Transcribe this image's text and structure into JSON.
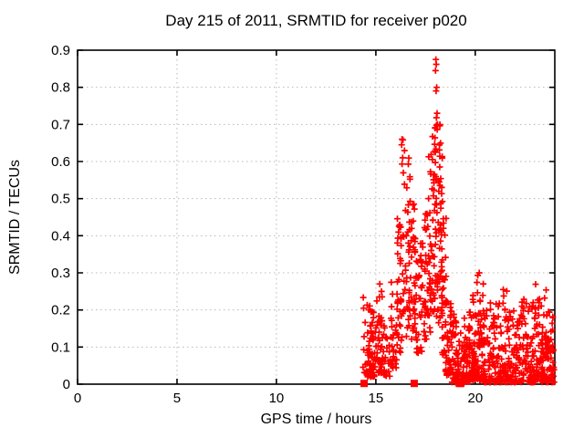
{
  "figure": {
    "background": "#ffffff"
  },
  "chart_data": {
    "type": "scatter",
    "title": "Day 215 of 2011, SRMTID for receiver p020",
    "xlabel": "GPS time / hours",
    "ylabel": "SRMTID / TECUs",
    "xlim": [
      0,
      24
    ],
    "ylim": [
      0,
      0.9
    ],
    "xtick_values": [
      0,
      5,
      10,
      15,
      20
    ],
    "xtick_labels": [
      "0",
      "5",
      "10",
      "15",
      "20"
    ],
    "ytick_values": [
      0,
      0.1,
      0.2,
      0.3,
      0.4,
      0.5,
      0.6,
      0.7,
      0.8,
      0.9
    ],
    "ytick_labels": [
      "0",
      "0.1",
      "0.2",
      "0.3",
      "0.4",
      "0.5",
      "0.6",
      "0.7",
      "0.8",
      "0.9"
    ],
    "grid": true,
    "legend": "none",
    "marker": {
      "shape": "plus",
      "color": "#ff0000",
      "size": 7
    },
    "axis_marker": {
      "shape": "filled-square",
      "color": "#ff0000",
      "size": 8
    },
    "colors": {
      "border": "#000000",
      "grid": "#b8b8b8",
      "text": "#000000",
      "points": "#ff0000"
    },
    "data_time_range_hours": [
      14.35,
      23.97
    ],
    "peak_points": [
      [
        18.02,
        0.875
      ],
      [
        18.04,
        0.862
      ],
      [
        18.0,
        0.845
      ],
      [
        18.06,
        0.8
      ],
      [
        18.03,
        0.79
      ],
      [
        18.08,
        0.73
      ],
      [
        18.05,
        0.718
      ],
      [
        18.1,
        0.7
      ],
      [
        17.98,
        0.69
      ],
      [
        16.32,
        0.66
      ],
      [
        16.3,
        0.645
      ],
      [
        16.35,
        0.61
      ],
      [
        20.2,
        0.3
      ],
      [
        15.2,
        0.27
      ]
    ],
    "axis_squares": [
      [
        14.41,
        0.002
      ],
      [
        16.93,
        0.002
      ],
      [
        19.2,
        0.002
      ],
      [
        19.27,
        0.002
      ]
    ],
    "point_cloud": {
      "seed": 20110803,
      "strips_format": [
        "x_start_h",
        "x_end_h",
        "n_points",
        "y_min",
        "y_max",
        "low_bias_exponent"
      ],
      "strips": [
        [
          14.35,
          14.6,
          16,
          0.03,
          0.25,
          2.2
        ],
        [
          14.55,
          15.0,
          55,
          0.02,
          0.22,
          2.0
        ],
        [
          15.0,
          15.35,
          40,
          0.03,
          0.26,
          2.0
        ],
        [
          15.35,
          15.75,
          22,
          0.02,
          0.17,
          1.6
        ],
        [
          15.75,
          16.1,
          30,
          0.04,
          0.32,
          1.5
        ],
        [
          16.05,
          16.3,
          30,
          0.08,
          0.47,
          1.3
        ],
        [
          16.25,
          16.45,
          18,
          0.12,
          0.66,
          1.2
        ],
        [
          16.45,
          16.75,
          35,
          0.12,
          0.62,
          1.5
        ],
        [
          16.75,
          17.05,
          40,
          0.12,
          0.5,
          1.4
        ],
        [
          17.05,
          17.35,
          30,
          0.08,
          0.38,
          1.4
        ],
        [
          17.35,
          17.6,
          28,
          0.1,
          0.46,
          1.3
        ],
        [
          17.6,
          17.85,
          35,
          0.14,
          0.62,
          1.2
        ],
        [
          17.85,
          18.1,
          45,
          0.18,
          0.75,
          1.1
        ],
        [
          18.1,
          18.35,
          45,
          0.15,
          0.7,
          1.2
        ],
        [
          18.3,
          18.55,
          30,
          0.08,
          0.5,
          1.5
        ],
        [
          18.5,
          18.8,
          35,
          0.02,
          0.3,
          1.6
        ],
        [
          18.75,
          19.1,
          40,
          0.005,
          0.22,
          1.8
        ],
        [
          19.05,
          19.45,
          45,
          0.005,
          0.15,
          1.7
        ],
        [
          19.4,
          19.75,
          45,
          0.005,
          0.2,
          1.8
        ],
        [
          19.7,
          20.05,
          50,
          0.01,
          0.24,
          1.8
        ],
        [
          20.05,
          20.45,
          60,
          0.01,
          0.3,
          2.0
        ],
        [
          20.4,
          21.0,
          65,
          0.005,
          0.22,
          2.0
        ],
        [
          21.0,
          21.6,
          70,
          0.005,
          0.26,
          2.0
        ],
        [
          21.6,
          22.3,
          80,
          0.005,
          0.21,
          2.0
        ],
        [
          22.3,
          23.0,
          80,
          0.005,
          0.23,
          2.0
        ],
        [
          23.0,
          23.6,
          80,
          0.005,
          0.27,
          2.0
        ],
        [
          23.55,
          23.97,
          60,
          0.005,
          0.2,
          1.8
        ]
      ]
    }
  }
}
